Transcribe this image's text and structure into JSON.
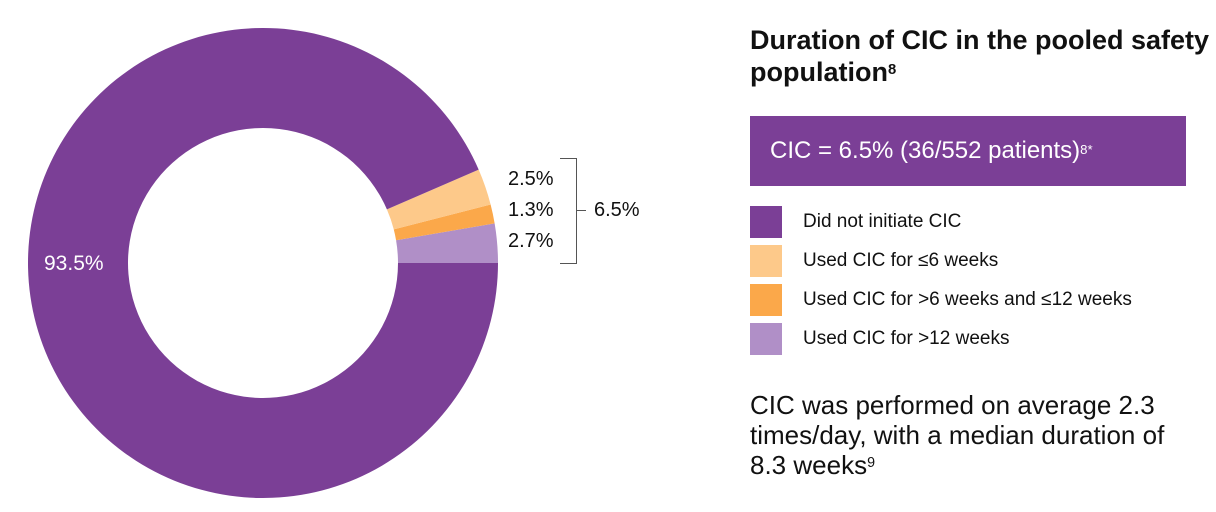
{
  "chart_data": {
    "type": "pie",
    "variant": "donut",
    "title": "Duration of CIC in the pooled safety population",
    "title_superscript": "8",
    "slices": [
      {
        "label": "Used CIC for >12 weeks",
        "value": 2.7,
        "value_label": "2.7%",
        "color": "#B08FC7"
      },
      {
        "label": "Used CIC for >6 weeks and ≤12 weeks",
        "value": 1.3,
        "value_label": "1.3%",
        "color": "#FBA84A"
      },
      {
        "label": "Used CIC for ≤6 weeks",
        "value": 2.5,
        "value_label": "2.5%",
        "color": "#FDC98A"
      },
      {
        "label": "Did not initiate CIC",
        "value": 93.5,
        "value_label": "93.5%",
        "color": "#7B3F96"
      }
    ],
    "bracket_total_label": "6.5%",
    "legend_order": [
      3,
      2,
      1,
      0
    ],
    "legend_placement": "right"
  },
  "banner": {
    "text": "CIC = 6.5% (36/552 patients)",
    "superscript": "8*"
  },
  "note": {
    "text": "CIC was performed on average 2.3 times/day, with a median duration of 8.3 weeks",
    "superscript": "9"
  }
}
